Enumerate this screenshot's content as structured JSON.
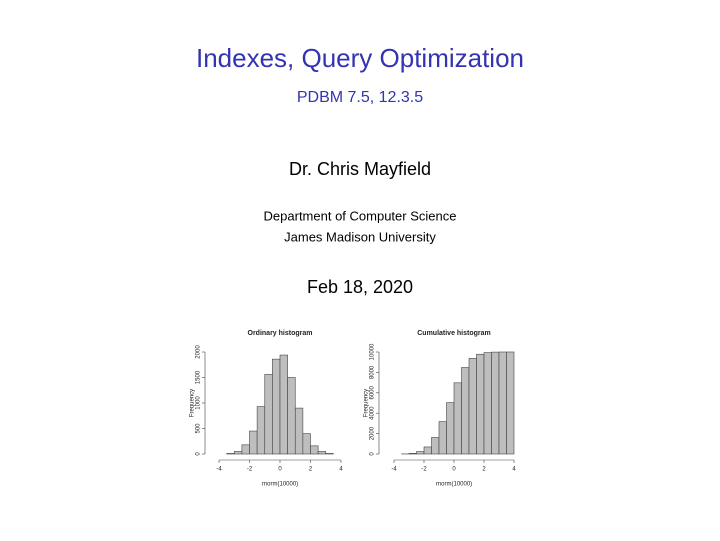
{
  "title": "Indexes, Query Optimization",
  "subtitle": "PDBM 7.5, 12.3.5",
  "author": "Dr. Chris Mayfield",
  "department": "Department of Computer Science",
  "university": "James Madison University",
  "date": "Feb 18, 2020",
  "chart_data": [
    {
      "type": "histogram",
      "title": "Ordinary histogram",
      "xlabel": "rnorm(10000)",
      "ylabel": "Frequency",
      "bins": [
        -4,
        -3.5,
        -3,
        -2.5,
        -2,
        -1.5,
        -1,
        -0.5,
        0,
        0.5,
        1,
        1.5,
        2,
        2.5,
        3,
        3.5,
        4
      ],
      "values": [
        0,
        10,
        50,
        180,
        450,
        930,
        1560,
        1860,
        1940,
        1500,
        900,
        400,
        160,
        50,
        10,
        0
      ],
      "color": "#bebebe",
      "xlim": [
        -4,
        4
      ],
      "ylim": [
        0,
        2000
      ],
      "xticks": [
        -4,
        -2,
        0,
        2,
        4
      ],
      "yticks": [
        0,
        500,
        1000,
        1500,
        2000
      ]
    },
    {
      "type": "histogram",
      "title": "Cumulative histogram",
      "xlabel": "rnorm(10000)",
      "ylabel": "Frequency",
      "bins": [
        -4,
        -3.5,
        -3,
        -2.5,
        -2,
        -1.5,
        -1,
        -0.5,
        0,
        0.5,
        1,
        1.5,
        2,
        2.5,
        3,
        3.5,
        4
      ],
      "values": [
        0,
        10,
        60,
        240,
        690,
        1620,
        3180,
        5040,
        6980,
        8480,
        9380,
        9780,
        9940,
        9990,
        10000,
        10000
      ],
      "color": "#bebebe",
      "xlim": [
        -4,
        4
      ],
      "ylim": [
        0,
        10000
      ],
      "xticks": [
        -4,
        -2,
        0,
        2,
        4
      ],
      "yticks": [
        0,
        2000,
        4000,
        6000,
        8000,
        10000
      ]
    }
  ]
}
